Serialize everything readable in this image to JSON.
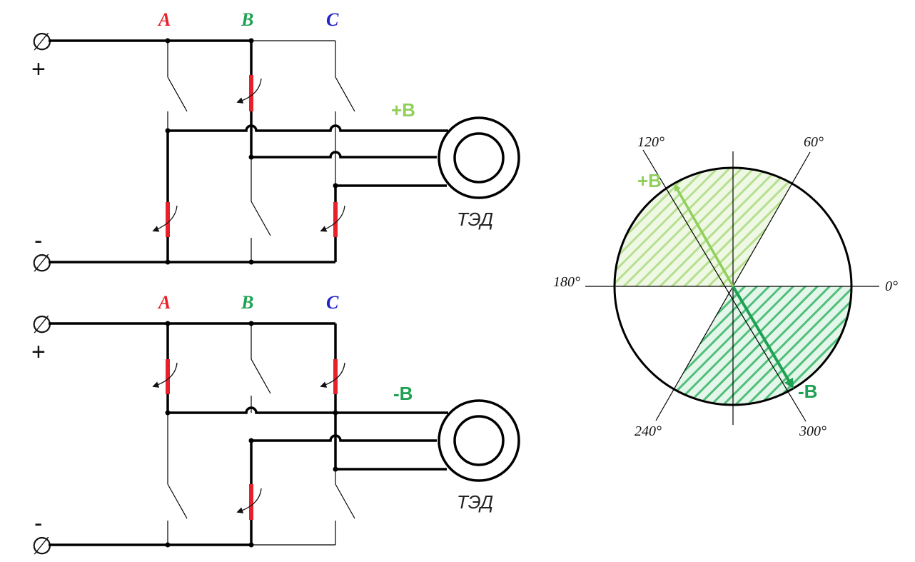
{
  "colors": {
    "phase_a": "#e8202a",
    "phase_b": "#1ea152",
    "phase_c": "#2323c8",
    "vector_pos": "#8fcf5a",
    "vector_neg": "#1ea152",
    "hatch_pos": "#b7df8f",
    "hatch_neg": "#4fbf7a",
    "switch_closed": "#e8202a"
  },
  "circuits": [
    {
      "phases": {
        "a": "A",
        "b": "B",
        "c": "C"
      },
      "plus_symbol": "+",
      "minus_symbol": "-",
      "terminal_symbol": "∅",
      "vector_label": "+B",
      "motor_label": "ТЭД"
    },
    {
      "phases": {
        "a": "A",
        "b": "B",
        "c": "C"
      },
      "plus_symbol": "+",
      "minus_symbol": "-",
      "terminal_symbol": "∅",
      "vector_label": "-B",
      "motor_label": "ТЭД"
    }
  ],
  "phasor": {
    "angles": {
      "a0": "0°",
      "a60": "60°",
      "a120": "120°",
      "a180": "180°",
      "a240": "240°",
      "a300": "300°"
    },
    "vector_pos_label": "+B",
    "vector_neg_label": "-B"
  }
}
